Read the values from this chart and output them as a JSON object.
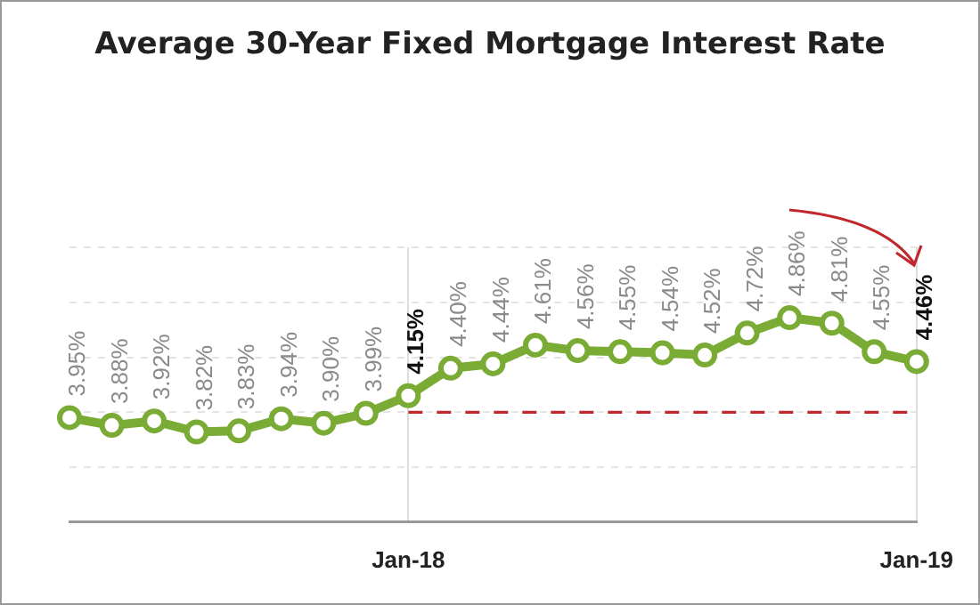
{
  "chart_data": {
    "type": "line",
    "title": "Average 30-Year Fixed Mortgage Interest Rate",
    "categories": [
      null,
      null,
      null,
      null,
      null,
      null,
      null,
      null,
      "Jan-18",
      null,
      null,
      null,
      null,
      null,
      null,
      null,
      null,
      null,
      null,
      null,
      "Jan-19"
    ],
    "series": [
      {
        "color": "#7aab35",
        "values": [
          3.95,
          3.88,
          3.92,
          3.82,
          3.83,
          3.94,
          3.9,
          3.99,
          4.15,
          4.4,
          4.44,
          4.61,
          4.56,
          4.55,
          4.54,
          4.52,
          4.72,
          4.86,
          4.81,
          4.55,
          4.46
        ],
        "value_labels": [
          "3.95%",
          "3.88%",
          "3.92%",
          "3.82%",
          "3.83%",
          "3.94%",
          "3.90%",
          "3.99%",
          "4.15%",
          "4.40%",
          "4.44%",
          "4.61%",
          "4.56%",
          "4.55%",
          "4.54%",
          "4.52%",
          "4.72%",
          "4.86%",
          "4.81%",
          "4.55%",
          "4.46%"
        ]
      }
    ],
    "ylim": [
      3,
      5.5
    ],
    "yticks": [
      {
        "value": 3,
        "label": null
      },
      {
        "value": 3.5,
        "label": null
      },
      {
        "value": 4,
        "label": null
      },
      {
        "value": 4.5,
        "label": null
      },
      {
        "value": 5,
        "label": null
      },
      {
        "value": 5.5,
        "label": null
      }
    ],
    "tick_labels": "x",
    "grid": true,
    "legend": false,
    "marker": "circle",
    "line_style": "solid",
    "ref_lines": [
      {
        "axis": "y",
        "value": 4,
        "color": "#c0282d",
        "line_style": "dashed"
      }
    ]
  }
}
